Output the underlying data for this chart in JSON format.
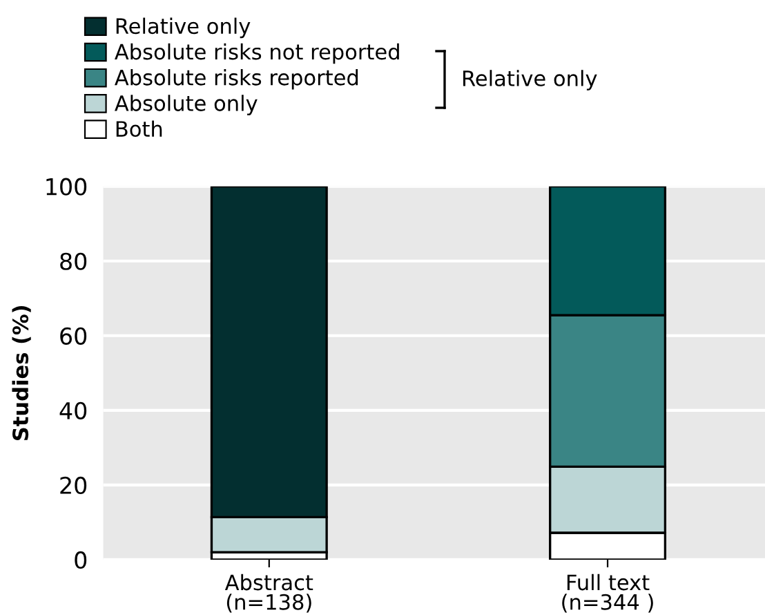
{
  "chart_data": {
    "type": "bar",
    "stacked": true,
    "ylabel": "Studies (%)",
    "categories": [
      "Abstract\n(n=138)",
      "Full text\n(n=344 )"
    ],
    "series": [
      {
        "name": "Both",
        "color": "#ffffff",
        "values": [
          2.0,
          7.2
        ]
      },
      {
        "name": "Absolute only",
        "color": "#bcd6d6",
        "values": [
          9.4,
          17.7
        ]
      },
      {
        "name": "Absolute risks reported",
        "color": "#3a8585",
        "values": [
          0,
          40.6
        ]
      },
      {
        "name": "Absolute risks not reported",
        "color": "#035a5a",
        "values": [
          0,
          34.5
        ]
      },
      {
        "name": "Relative only",
        "color": "#032f30",
        "values": [
          88.6,
          0
        ]
      }
    ],
    "annotations": [
      "Relative only"
    ],
    "ylim": [
      0,
      100
    ],
    "yticks": [
      0,
      20,
      40,
      60,
      80,
      100
    ],
    "grid": "y",
    "legend": "top left"
  }
}
